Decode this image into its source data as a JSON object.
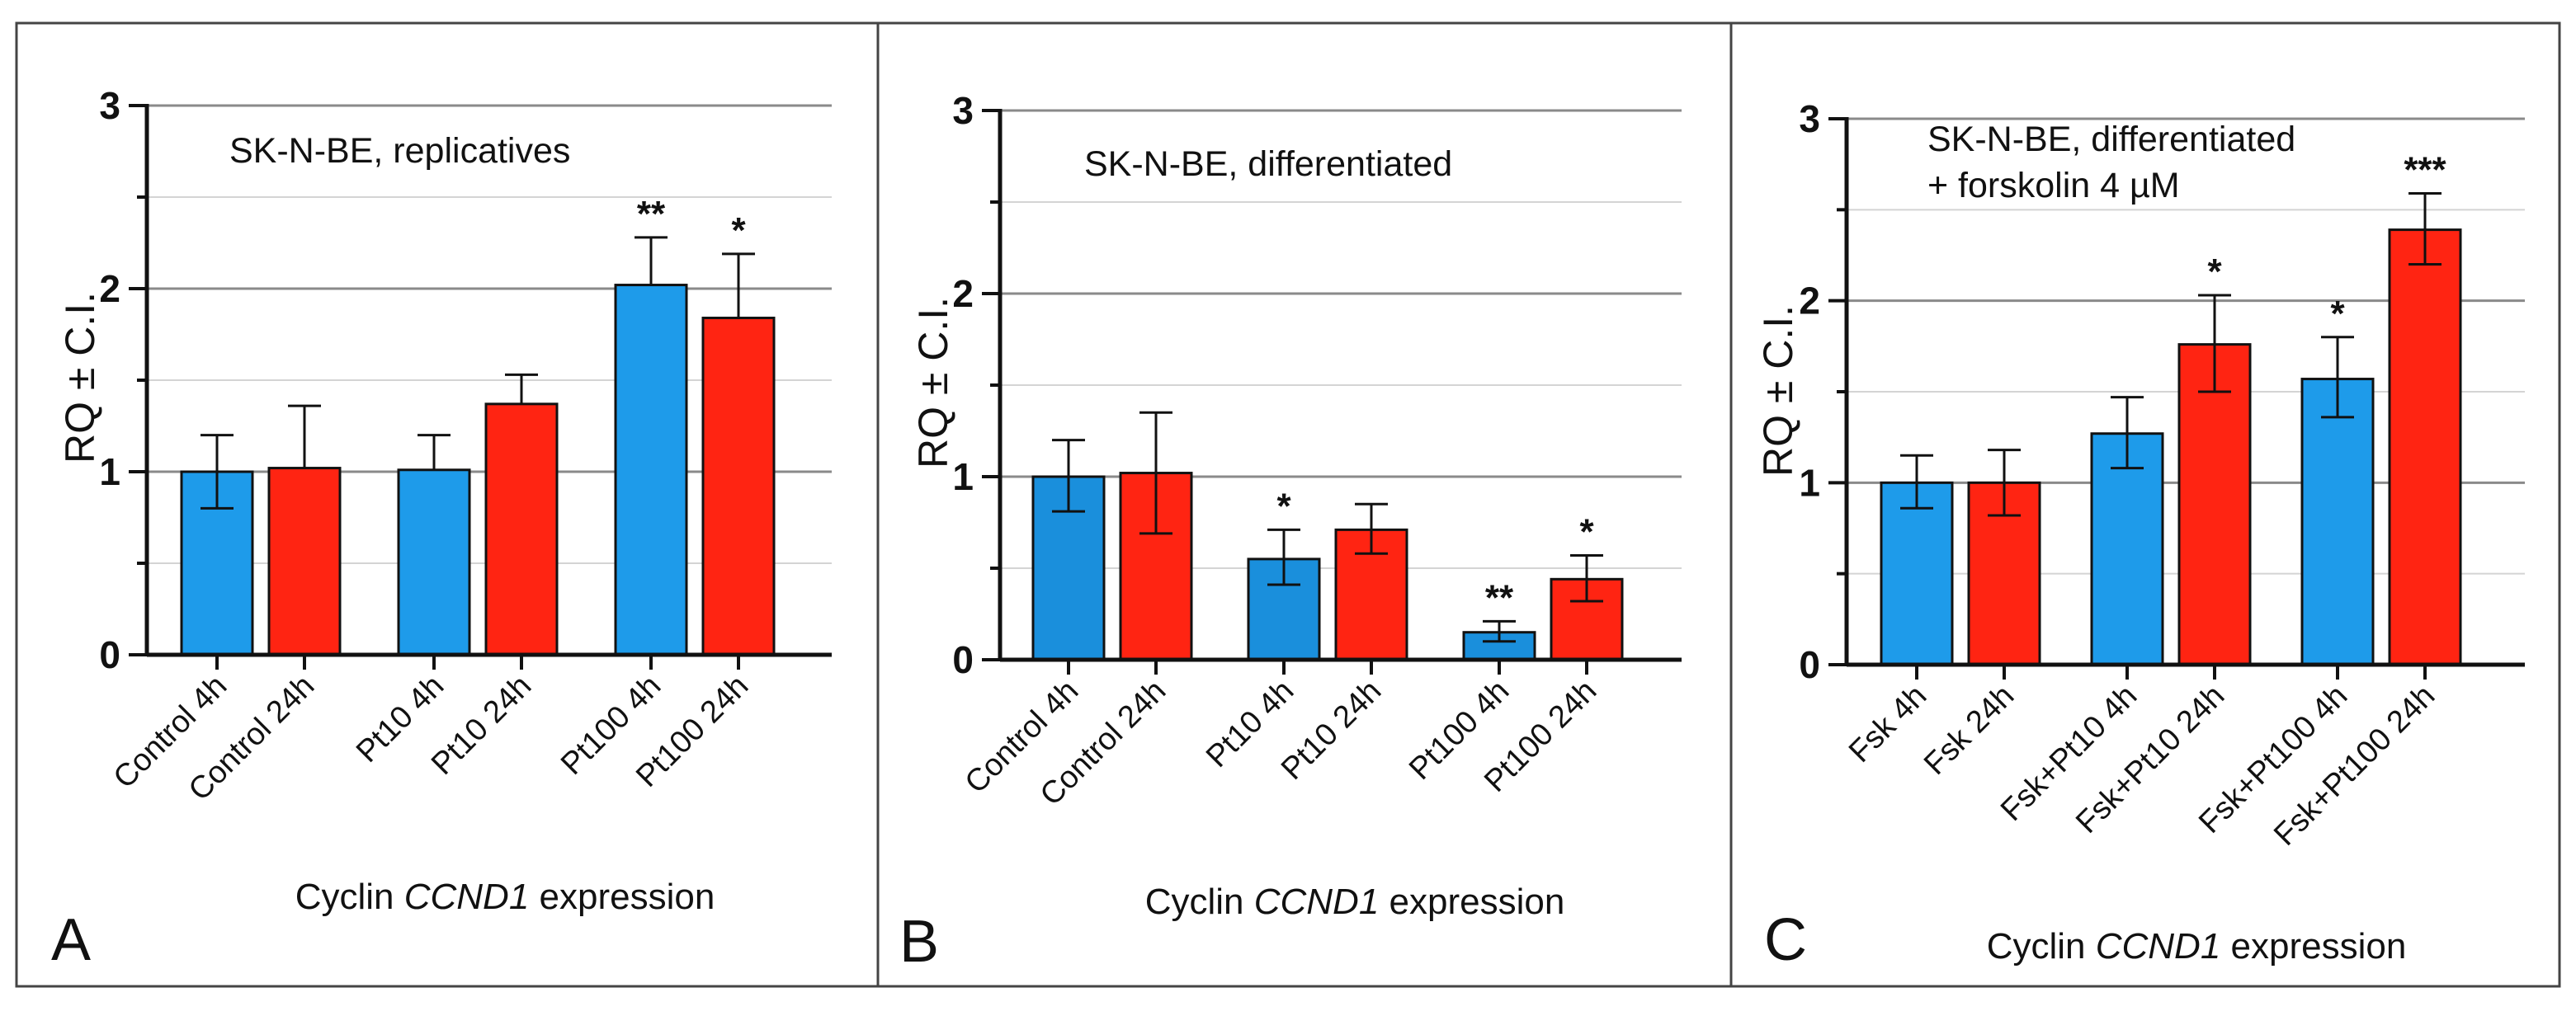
{
  "figure": {
    "shared_ylabel": "RQ ± C.I.",
    "xtitle_prefix": "Cyclin ",
    "xtitle_gene": "CCND1",
    "xtitle_suffix": " expression"
  },
  "colors": {
    "blue": "#1e9bea",
    "blue_dark": "#1a8fdc",
    "red": "#ff2412",
    "frame": "#444444",
    "grid": "#8a8a8a",
    "grid_minor": "#d4d4d4",
    "axis": "#111111"
  },
  "chart_data": [
    {
      "panel": "A",
      "type": "bar",
      "title_lines": [
        "SK-N-BE, replicatives"
      ],
      "xlabel": "Cyclin CCND1 expression",
      "ylabel": "RQ ± C.I.",
      "ylim": [
        0,
        3
      ],
      "yticks": [
        0,
        1,
        2,
        3
      ],
      "grid": true,
      "categories": [
        "Control 4h",
        "Control 24h",
        "Pt10 4h",
        "Pt10 24h",
        "Pt100 4h",
        "Pt100 24h"
      ],
      "groups": [
        0,
        0,
        1,
        1,
        2,
        2
      ],
      "bar_colors": [
        "blue",
        "red",
        "blue",
        "red",
        "blue",
        "red"
      ],
      "values": [
        1.0,
        1.02,
        1.01,
        1.37,
        2.02,
        1.84
      ],
      "err_low": [
        0.8,
        1.02,
        1.01,
        1.37,
        2.02,
        1.84
      ],
      "err_high": [
        1.2,
        1.36,
        1.2,
        1.53,
        2.28,
        2.19
      ],
      "significance": [
        "",
        "",
        "",
        "",
        "**",
        "*"
      ]
    },
    {
      "panel": "B",
      "type": "bar",
      "title_lines": [
        "SK-N-BE, differentiated"
      ],
      "xlabel": "Cyclin CCND1 expression",
      "ylabel": "RQ ± C.I.",
      "ylim": [
        0,
        3
      ],
      "yticks": [
        0,
        1,
        2,
        3
      ],
      "grid": true,
      "categories": [
        "Control 4h",
        "Control 24h",
        "Pt10 4h",
        "Pt10 24h",
        "Pt100 4h",
        "Pt100 24h"
      ],
      "groups": [
        0,
        0,
        1,
        1,
        2,
        2
      ],
      "bar_colors": [
        "blue_dark",
        "red",
        "blue_dark",
        "red",
        "blue_dark",
        "red"
      ],
      "values": [
        1.0,
        1.02,
        0.55,
        0.71,
        0.15,
        0.44
      ],
      "err_low": [
        0.81,
        0.69,
        0.41,
        0.58,
        0.1,
        0.32
      ],
      "err_high": [
        1.2,
        1.35,
        0.71,
        0.85,
        0.21,
        0.57
      ],
      "significance": [
        "",
        "",
        "*",
        "",
        "**",
        "*"
      ]
    },
    {
      "panel": "C",
      "type": "bar",
      "title_lines": [
        "SK-N-BE, differentiated",
        "+ forskolin 4 µM"
      ],
      "xlabel": "Cyclin CCND1 expression",
      "ylabel": "RQ ± C.I.",
      "ylim": [
        0,
        3
      ],
      "yticks": [
        0,
        1,
        2,
        3
      ],
      "grid": true,
      "categories": [
        "Fsk 4h",
        "Fsk 24h",
        "Fsk+Pt10 4h",
        "Fsk+Pt10 24h",
        "Fsk+Pt100 4h",
        "Fsk+Pt100 24h"
      ],
      "groups": [
        0,
        0,
        1,
        1,
        2,
        2
      ],
      "bar_colors": [
        "blue",
        "red",
        "blue",
        "red",
        "blue",
        "red"
      ],
      "values": [
        1.0,
        1.0,
        1.27,
        1.76,
        1.57,
        2.39
      ],
      "err_low": [
        0.86,
        0.82,
        1.08,
        1.5,
        1.36,
        2.2
      ],
      "err_high": [
        1.15,
        1.18,
        1.47,
        2.03,
        1.8,
        2.59
      ],
      "significance": [
        "",
        "",
        "",
        "*",
        "*",
        "***"
      ]
    }
  ]
}
